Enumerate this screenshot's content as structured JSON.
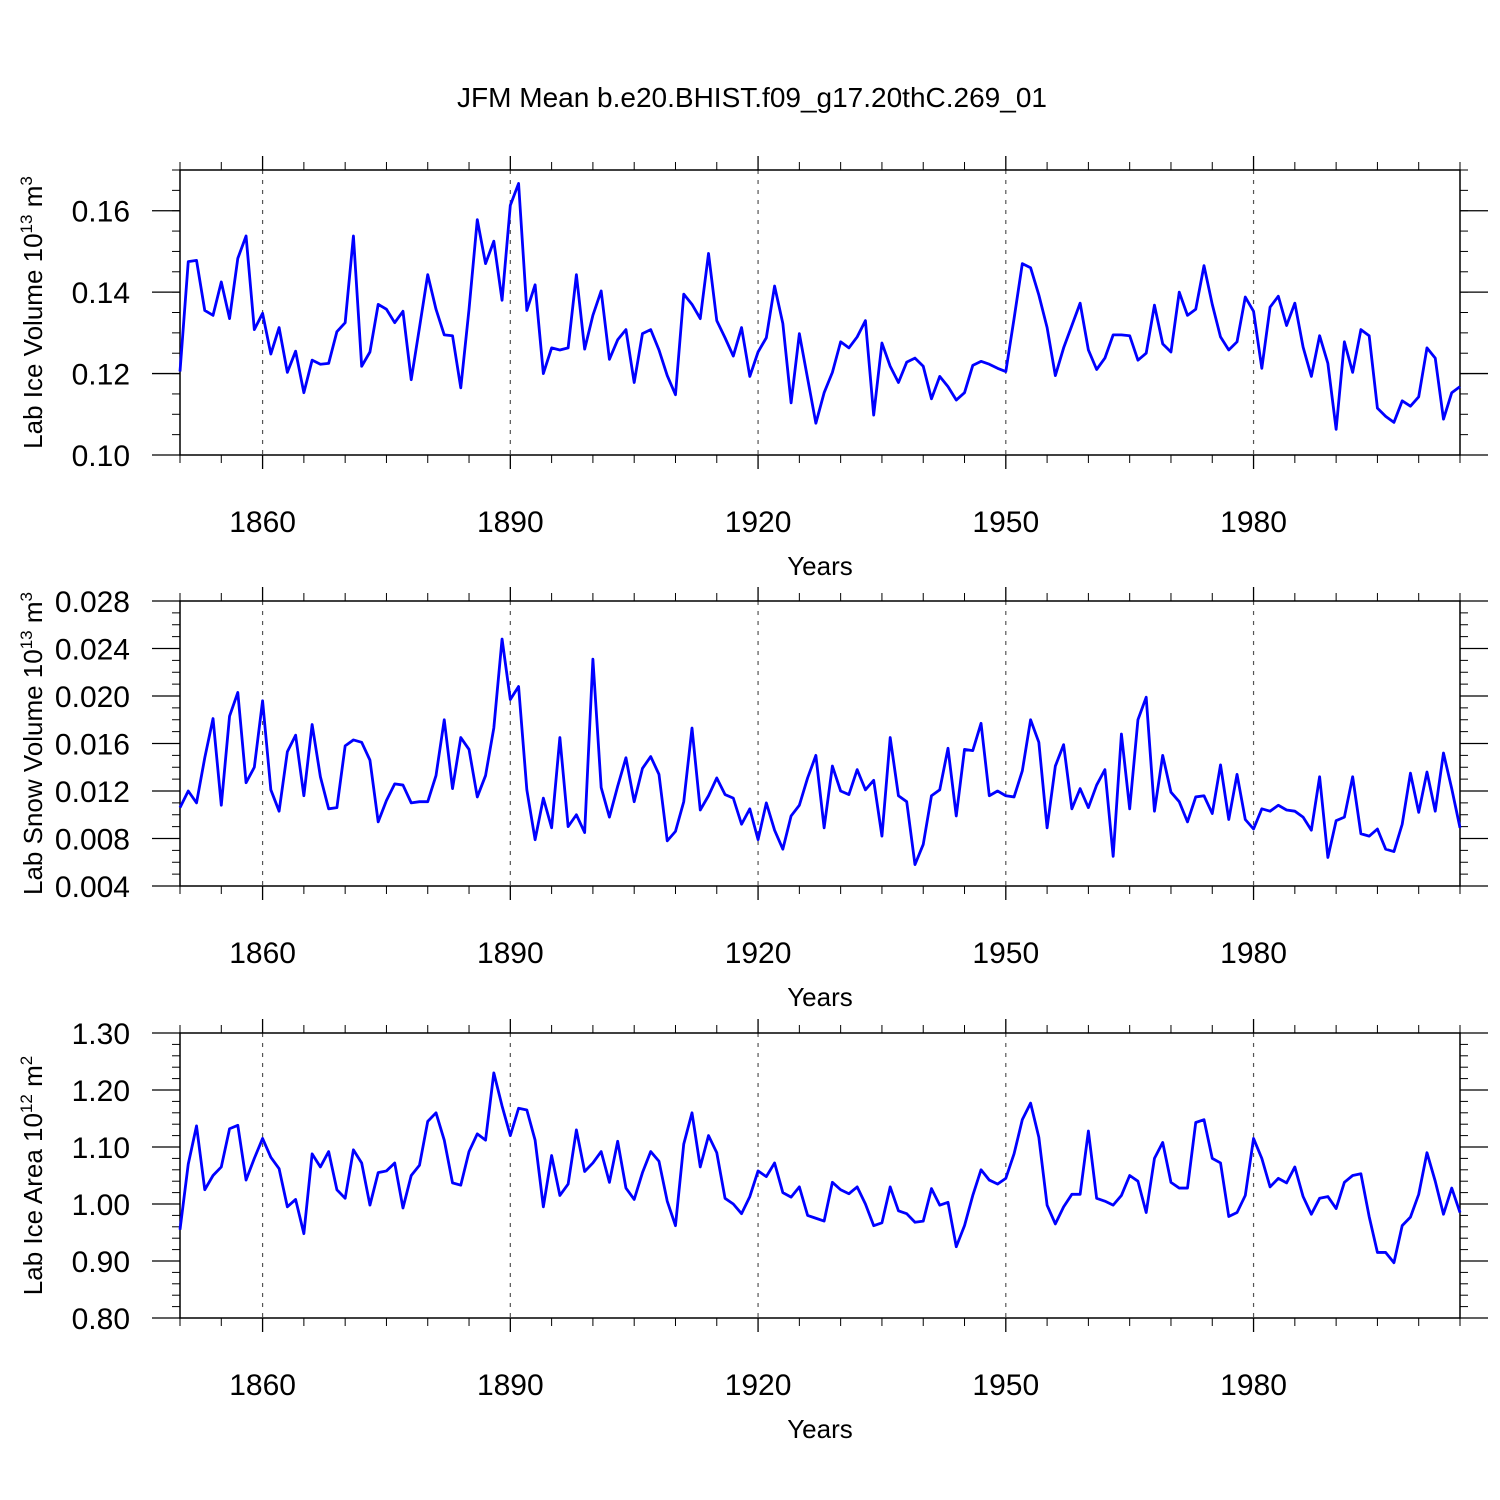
{
  "title": "JFM Mean b.e20.BHIST.f09_g17.20thC.269_01",
  "colors": {
    "series": "#0000ff",
    "grid": "#555555"
  },
  "chart_data": [
    {
      "type": "line",
      "ylabel": "Lab Ice Volume 10",
      "ylabel_exp": "13",
      "ylabel_unit": " m",
      "ylabel_unit_exp": "3",
      "xlabel": "Years",
      "xlim": [
        1850,
        2005
      ],
      "ylim": [
        0.1,
        0.17
      ],
      "xticks": [
        1860,
        1890,
        1920,
        1950,
        1980
      ],
      "xtick_labels": [
        "1860",
        "1890",
        "1920",
        "1950",
        "1980"
      ],
      "yticks": [
        0.1,
        0.12,
        0.14,
        0.16
      ],
      "ytick_labels": [
        "0.10",
        "0.12",
        "0.14",
        "0.16"
      ],
      "yminor": 0.005,
      "x_start": 1850,
      "values": [
        0.1205,
        0.1475,
        0.1478,
        0.1355,
        0.1343,
        0.1425,
        0.1335,
        0.1483,
        0.1538,
        0.1308,
        0.1348,
        0.1248,
        0.1313,
        0.1203,
        0.1255,
        0.1153,
        0.1233,
        0.1223,
        0.1225,
        0.1303,
        0.1325,
        0.1538,
        0.1218,
        0.1253,
        0.137,
        0.1358,
        0.1325,
        0.1353,
        0.1185,
        0.1313,
        0.1443,
        0.1358,
        0.1295,
        0.1293,
        0.1165,
        0.1358,
        0.1578,
        0.147,
        0.1525,
        0.138,
        0.1613,
        0.1667,
        0.1355,
        0.1418,
        0.12,
        0.1263,
        0.1258,
        0.1263,
        0.1443,
        0.126,
        0.1343,
        0.1403,
        0.1235,
        0.1283,
        0.1308,
        0.1178,
        0.1298,
        0.1308,
        0.1258,
        0.1195,
        0.1148,
        0.1395,
        0.137,
        0.1335,
        0.1495,
        0.133,
        0.1288,
        0.1243,
        0.1313,
        0.1193,
        0.1253,
        0.1288,
        0.1415,
        0.1323,
        0.1128,
        0.1298,
        0.1188,
        0.1078,
        0.1153,
        0.1203,
        0.1278,
        0.1263,
        0.129,
        0.133,
        0.1098,
        0.1275,
        0.1218,
        0.1178,
        0.1228,
        0.1238,
        0.1218,
        0.1138,
        0.1193,
        0.1168,
        0.1135,
        0.1153,
        0.122,
        0.123,
        0.1223,
        0.1213,
        0.1205,
        0.1335,
        0.147,
        0.146,
        0.1393,
        0.1313,
        0.1195,
        0.1263,
        0.1318,
        0.1373,
        0.1258,
        0.121,
        0.1238,
        0.1295,
        0.1295,
        0.1293,
        0.1233,
        0.125,
        0.1368,
        0.1273,
        0.1253,
        0.14,
        0.1343,
        0.1358,
        0.1465,
        0.137,
        0.129,
        0.1258,
        0.1278,
        0.1388,
        0.1353,
        0.1213,
        0.1363,
        0.139,
        0.1318,
        0.1373,
        0.1265,
        0.1193,
        0.1293,
        0.1225,
        0.1063,
        0.1278,
        0.1203,
        0.1308,
        0.1293,
        0.1115,
        0.1095,
        0.108,
        0.1133,
        0.112,
        0.1143,
        0.1263,
        0.1238,
        0.1088,
        0.1153,
        0.1168
      ]
    },
    {
      "type": "line",
      "ylabel": "Lab Snow Volume 10",
      "ylabel_exp": "13",
      "ylabel_unit": " m",
      "ylabel_unit_exp": "3",
      "xlabel": "Years",
      "xlim": [
        1850,
        2005
      ],
      "ylim": [
        0.004,
        0.028
      ],
      "xticks": [
        1860,
        1890,
        1920,
        1950,
        1980
      ],
      "xtick_labels": [
        "1860",
        "1890",
        "1920",
        "1950",
        "1980"
      ],
      "yticks": [
        0.004,
        0.008,
        0.012,
        0.016,
        0.02,
        0.024,
        0.028
      ],
      "ytick_labels": [
        "0.004",
        "0.008",
        "0.012",
        "0.016",
        "0.020",
        "0.024",
        "0.028"
      ],
      "yminor": 0.001,
      "x_start": 1850,
      "values": [
        0.0106,
        0.012,
        0.011,
        0.0148,
        0.0181,
        0.0108,
        0.0183,
        0.0203,
        0.0127,
        0.014,
        0.0196,
        0.0121,
        0.0103,
        0.0153,
        0.0167,
        0.0116,
        0.0176,
        0.0132,
        0.0105,
        0.0106,
        0.0158,
        0.0163,
        0.0161,
        0.0146,
        0.0094,
        0.0112,
        0.0126,
        0.0125,
        0.011,
        0.0111,
        0.0111,
        0.0133,
        0.018,
        0.0122,
        0.0165,
        0.0155,
        0.0115,
        0.0133,
        0.0173,
        0.0248,
        0.0197,
        0.0208,
        0.0121,
        0.0079,
        0.0114,
        0.0089,
        0.0165,
        0.009,
        0.01,
        0.0085,
        0.0231,
        0.0123,
        0.0098,
        0.0124,
        0.0148,
        0.0111,
        0.0139,
        0.0149,
        0.0134,
        0.0078,
        0.0086,
        0.0111,
        0.0173,
        0.0104,
        0.0116,
        0.0131,
        0.0117,
        0.0114,
        0.0092,
        0.0105,
        0.0079,
        0.011,
        0.0087,
        0.0071,
        0.0099,
        0.0108,
        0.0131,
        0.015,
        0.0089,
        0.0141,
        0.012,
        0.0117,
        0.0138,
        0.0121,
        0.0129,
        0.0082,
        0.0165,
        0.0116,
        0.0111,
        0.0058,
        0.0075,
        0.0116,
        0.0121,
        0.0156,
        0.0099,
        0.0155,
        0.0154,
        0.0177,
        0.0116,
        0.012,
        0.0116,
        0.0115,
        0.0137,
        0.018,
        0.0161,
        0.0089,
        0.0141,
        0.0159,
        0.0105,
        0.0122,
        0.0106,
        0.0125,
        0.0138,
        0.0065,
        0.0168,
        0.0105,
        0.018,
        0.0199,
        0.0103,
        0.015,
        0.0119,
        0.0111,
        0.0094,
        0.0115,
        0.0116,
        0.0101,
        0.0142,
        0.0096,
        0.0134,
        0.0096,
        0.0088,
        0.0105,
        0.0103,
        0.0108,
        0.0104,
        0.0103,
        0.0098,
        0.0087,
        0.0132,
        0.0064,
        0.0095,
        0.0098,
        0.0132,
        0.0084,
        0.0082,
        0.0088,
        0.0071,
        0.0069,
        0.0092,
        0.0135,
        0.0102,
        0.0136,
        0.0103,
        0.0152,
        0.0122,
        0.0089
      ]
    },
    {
      "type": "line",
      "ylabel": "Lab Ice Area 10",
      "ylabel_exp": "12",
      "ylabel_unit": " m",
      "ylabel_unit_exp": "2",
      "xlabel": "Years",
      "xlim": [
        1850,
        2005
      ],
      "ylim": [
        0.8,
        1.3
      ],
      "xticks": [
        1860,
        1890,
        1920,
        1950,
        1980
      ],
      "xtick_labels": [
        "1860",
        "1890",
        "1920",
        "1950",
        "1980"
      ],
      "yticks": [
        0.8,
        0.9,
        1.0,
        1.1,
        1.2,
        1.3
      ],
      "ytick_labels": [
        "0.80",
        "0.90",
        "1.00",
        "1.10",
        "1.20",
        "1.30"
      ],
      "yminor": 0.02,
      "x_start": 1850,
      "values": [
        0.955,
        1.07,
        1.137,
        1.025,
        1.05,
        1.065,
        1.132,
        1.138,
        1.042,
        1.08,
        1.115,
        1.082,
        1.062,
        0.995,
        1.008,
        0.948,
        1.088,
        1.065,
        1.092,
        1.025,
        1.01,
        1.095,
        1.072,
        0.998,
        1.055,
        1.058,
        1.072,
        0.993,
        1.05,
        1.068,
        1.145,
        1.16,
        1.112,
        1.037,
        1.033,
        1.092,
        1.123,
        1.112,
        1.23,
        1.172,
        1.12,
        1.168,
        1.165,
        1.112,
        0.995,
        1.085,
        1.015,
        1.035,
        1.13,
        1.057,
        1.072,
        1.092,
        1.038,
        1.11,
        1.028,
        1.008,
        1.055,
        1.092,
        1.075,
        1.005,
        0.962,
        1.105,
        1.16,
        1.065,
        1.12,
        1.09,
        1.01,
        1.0,
        0.983,
        1.013,
        1.058,
        1.048,
        1.072,
        1.02,
        1.012,
        1.03,
        0.98,
        0.975,
        0.97,
        1.038,
        1.025,
        1.018,
        1.03,
        1.0,
        0.962,
        0.967,
        1.03,
        0.988,
        0.983,
        0.968,
        0.97,
        1.027,
        0.998,
        1.003,
        0.925,
        0.962,
        1.015,
        1.06,
        1.042,
        1.035,
        1.045,
        1.088,
        1.148,
        1.177,
        1.117,
        0.998,
        0.965,
        0.995,
        1.017,
        1.017,
        1.128,
        1.01,
        1.005,
        0.998,
        1.015,
        1.05,
        1.04,
        0.985,
        1.08,
        1.108,
        1.038,
        1.028,
        1.028,
        1.143,
        1.148,
        1.08,
        1.072,
        0.978,
        0.985,
        1.015,
        1.115,
        1.08,
        1.03,
        1.045,
        1.037,
        1.065,
        1.013,
        0.982,
        1.01,
        1.013,
        0.992,
        1.038,
        1.05,
        1.053,
        0.978,
        0.915,
        0.915,
        0.897,
        0.962,
        0.977,
        1.017,
        1.09,
        1.04,
        0.982,
        1.028,
        0.985
      ]
    }
  ]
}
